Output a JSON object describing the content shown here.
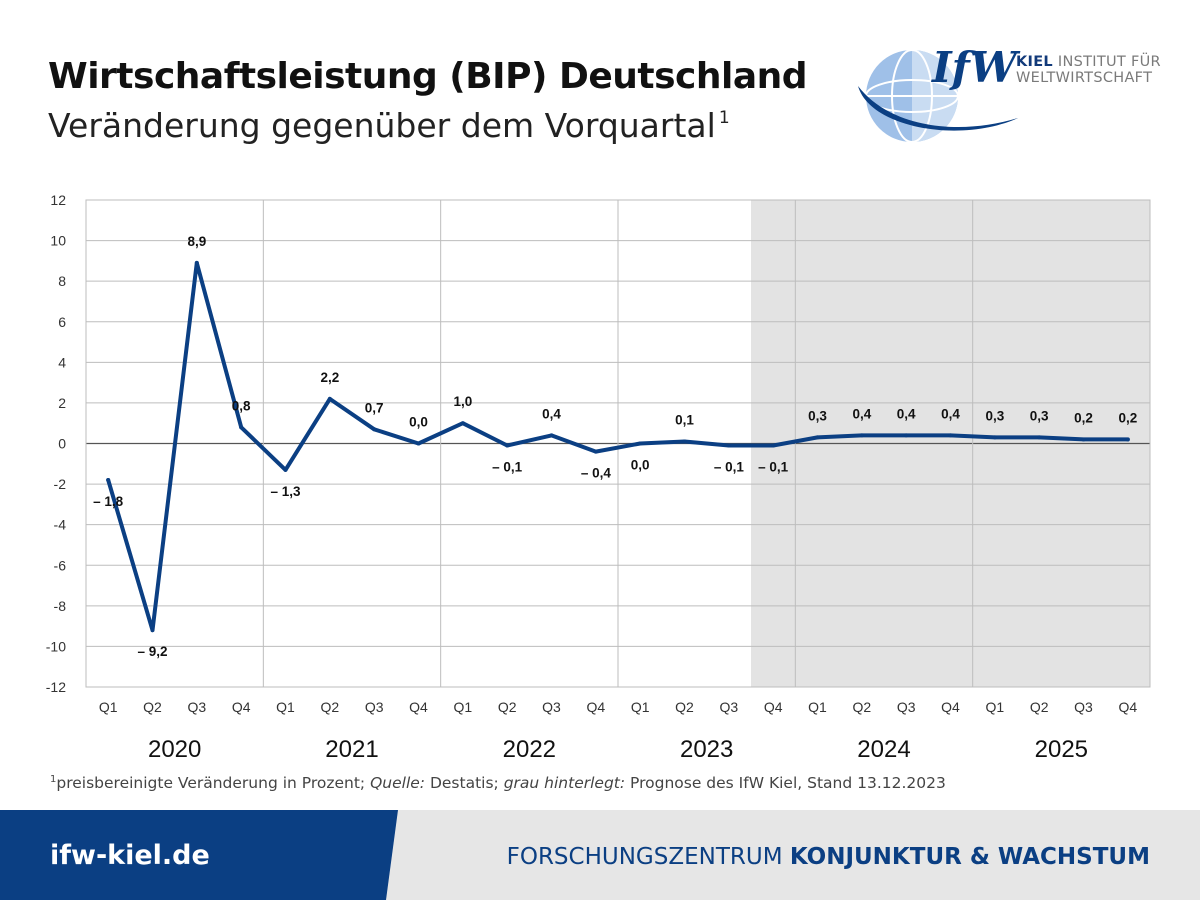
{
  "header": {
    "title": "Wirtschaftsleistung (BIP) Deutschland",
    "subtitle": "Veränderung gegenüber dem Vorquartal",
    "subtitle_sup": "1"
  },
  "logo": {
    "mark": "IfW",
    "line1_bold": "KIEL",
    "line1_rest": " INSTITUT FÜR",
    "line2": "WELTWIRTSCHAFT"
  },
  "chart_data": {
    "type": "line",
    "x": [
      "Q1",
      "Q2",
      "Q3",
      "Q4",
      "Q1",
      "Q2",
      "Q3",
      "Q4",
      "Q1",
      "Q2",
      "Q3",
      "Q4",
      "Q1",
      "Q2",
      "Q3",
      "Q4",
      "Q1",
      "Q2",
      "Q3",
      "Q4",
      "Q1",
      "Q2",
      "Q3",
      "Q4"
    ],
    "years": [
      "2020",
      "2021",
      "2022",
      "2023",
      "2024",
      "2025"
    ],
    "values": [
      -1.8,
      -9.2,
      8.9,
      0.8,
      -1.3,
      2.2,
      0.7,
      0.0,
      1.0,
      -0.1,
      0.4,
      -0.4,
      0.0,
      0.1,
      -0.1,
      -0.1,
      0.3,
      0.4,
      0.4,
      0.4,
      0.3,
      0.3,
      0.2,
      0.2
    ],
    "labels": [
      "– 1,8",
      "– 9,2",
      "8,9",
      "0,8",
      "– 1,3",
      "2,2",
      "0,7",
      "0,0",
      "1,0",
      "– 0,1",
      "0,4",
      "– 0,4",
      "0,0",
      "0,1",
      "– 0,1",
      "– 0,1",
      "0,3",
      "0,4",
      "0,4",
      "0,4",
      "0,3",
      "0,3",
      "0,2",
      "0,2"
    ],
    "ylim": [
      -12,
      12
    ],
    "yticks": [
      "12",
      "10",
      "8",
      "6",
      "4",
      "2",
      "0",
      "-2",
      "-4",
      "-6",
      "-8",
      "-10",
      "-12"
    ],
    "forecast_from_index": 15,
    "line_color": "#0b3f83",
    "forecast_bg": "#e3e3e3",
    "grid": true
  },
  "footnote": {
    "sup": "1",
    "part1": "preisbereinigte Veränderung in Prozent; ",
    "source_label": "Quelle:",
    "part2": " Destatis; ",
    "grey_label": "grau hinterlegt:",
    "part3": " Prognose des IfW Kiel, Stand 13.12.2023"
  },
  "footer": {
    "url": "ifw-kiel.de",
    "center_light": "FORSCHUNGSZENTRUM ",
    "center_bold": "KONJUNKTUR & WACHSTUM"
  }
}
